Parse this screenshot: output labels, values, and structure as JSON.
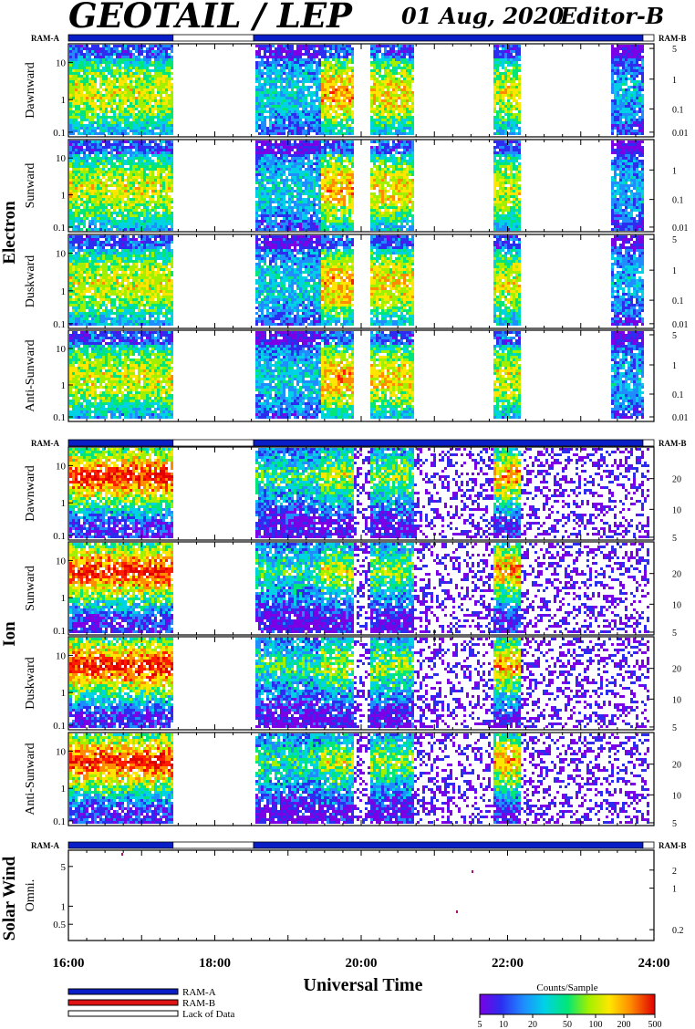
{
  "header": {
    "title": "GEOTAIL / LEP",
    "date": "01 Aug, 2020",
    "editor": "Editor-B"
  },
  "colors": {
    "ram_a": "#0a1ec8",
    "ram_b": "#e01414",
    "lack": "#ffffff",
    "palette": [
      "#7b00e6",
      "#2d2df0",
      "#1f8cff",
      "#00d2e6",
      "#00e678",
      "#a0f000",
      "#ffe600",
      "#ff8c00",
      "#ff1e00",
      "#e00000"
    ]
  },
  "x_axis": {
    "title": "Universal Time",
    "ticks": [
      "16:00",
      "18:00",
      "20:00",
      "22:00",
      "24:00"
    ],
    "range_hours": [
      16,
      24
    ]
  },
  "ram_bar": {
    "left_label": "RAM-A",
    "right_label": "RAM-B",
    "segments": [
      {
        "from": 16.0,
        "to": 17.43,
        "state": "ram_a"
      },
      {
        "from": 17.43,
        "to": 18.53,
        "state": "lack"
      },
      {
        "from": 18.53,
        "to": 23.85,
        "state": "ram_a"
      },
      {
        "from": 23.85,
        "to": 24.0,
        "state": "lack"
      }
    ]
  },
  "groups": [
    {
      "name": "Electron",
      "panels": [
        {
          "label": "Dawnward",
          "left_ticks": [
            "10",
            "1",
            "0.1"
          ],
          "right_ticks": [
            "5",
            "1",
            "0.1",
            "0.01"
          ]
        },
        {
          "label": "Sunward",
          "left_ticks": [
            "10",
            "1",
            "0.1"
          ],
          "right_ticks": [
            "1",
            "0.1",
            "0.01"
          ]
        },
        {
          "label": "Duskward",
          "left_ticks": [
            "10",
            "1",
            "0.1"
          ],
          "right_ticks": [
            "5",
            "1",
            "0.1",
            "0.01"
          ]
        },
        {
          "label": "Anti-Sunward",
          "left_ticks": [
            "10",
            "1",
            "0.1"
          ],
          "right_ticks": [
            "5",
            "1",
            "0.1",
            "0.01"
          ]
        }
      ]
    },
    {
      "name": "Ion",
      "panels": [
        {
          "label": "Dawnward",
          "left_ticks": [
            "10",
            "1",
            "0.1"
          ],
          "right_ticks": [
            "20",
            "10",
            "5"
          ]
        },
        {
          "label": "Sunward",
          "left_ticks": [
            "10",
            "1",
            "0.1"
          ],
          "right_ticks": [
            "20",
            "10",
            "5"
          ]
        },
        {
          "label": "Duskward",
          "left_ticks": [
            "10",
            "1",
            "0.1"
          ],
          "right_ticks": [
            "20",
            "10",
            "5"
          ]
        },
        {
          "label": "Anti-Sunward",
          "left_ticks": [
            "10",
            "1",
            "0.1"
          ],
          "right_ticks": [
            "20",
            "10",
            "5"
          ]
        }
      ]
    },
    {
      "name": "Solar Wind",
      "panels": [
        {
          "label": "Omni.",
          "left_ticks": [
            "5",
            "1",
            "0.5"
          ],
          "right_ticks": [
            "2",
            "1",
            "0.2"
          ]
        }
      ]
    }
  ],
  "legend": {
    "items": [
      "RAM-A",
      "RAM-B",
      "Lack of Data"
    ],
    "colorbar_title": "Counts/Sample",
    "colorbar_ticks": [
      "5",
      "10",
      "20",
      "50",
      "100",
      "200",
      "500"
    ]
  },
  "chart_data": {
    "type": "heatmap",
    "x_unit": "hours UT",
    "data_gaps": [
      [
        17.43,
        18.53
      ]
    ],
    "electron_activity": [
      {
        "from": 16.0,
        "to": 17.43,
        "peak": 0.6
      },
      {
        "from": 18.53,
        "to": 19.45,
        "peak": 0.35
      },
      {
        "from": 19.45,
        "to": 19.9,
        "peak": 0.7
      },
      {
        "from": 20.1,
        "to": 20.7,
        "peak": 0.65
      },
      {
        "from": 21.8,
        "to": 22.15,
        "peak": 0.6
      },
      {
        "from": 23.4,
        "to": 23.85,
        "peak": 0.3
      }
    ],
    "ion_activity": [
      {
        "from": 16.0,
        "to": 17.43,
        "peak": 0.9
      },
      {
        "from": 18.53,
        "to": 19.45,
        "peak": 0.45
      },
      {
        "from": 19.45,
        "to": 19.9,
        "peak": 0.6
      },
      {
        "from": 20.1,
        "to": 20.7,
        "peak": 0.55
      },
      {
        "from": 21.8,
        "to": 22.15,
        "peak": 0.75
      }
    ]
  }
}
